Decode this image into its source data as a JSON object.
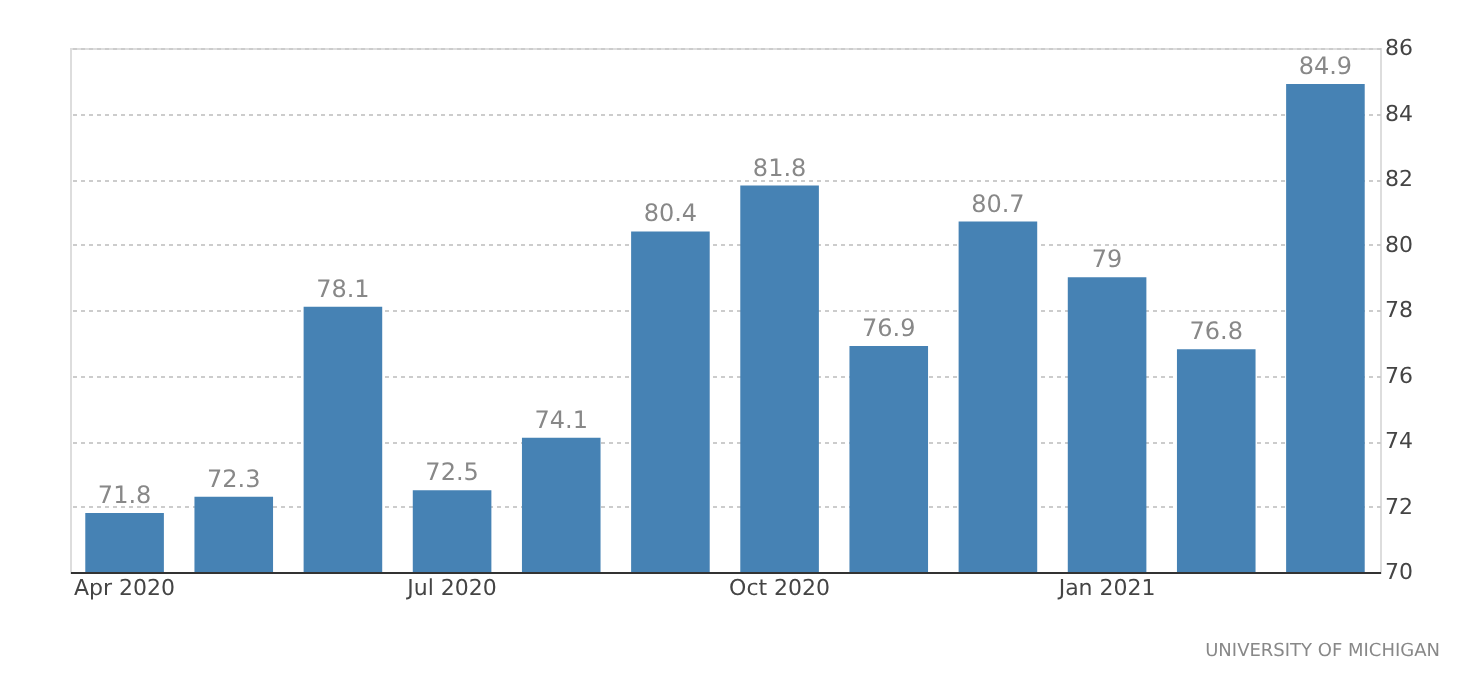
{
  "chart_data": {
    "type": "bar",
    "categories": [
      "Apr 2020",
      null,
      null,
      "Jul 2020",
      null,
      null,
      "Oct 2020",
      null,
      null,
      "Jan 2021",
      null,
      null
    ],
    "values": [
      71.8,
      72.3,
      78.1,
      72.5,
      74.1,
      80.4,
      81.8,
      76.9,
      80.7,
      79,
      76.8,
      84.9
    ],
    "color": "#4682b4",
    "ylim": [
      70,
      86
    ],
    "yticks": [
      70,
      72,
      74,
      76,
      78,
      80,
      82,
      84,
      86
    ],
    "grid": "y",
    "data_labels": true,
    "annotations": [
      "UNIVERSITY OF MICHIGAN"
    ]
  }
}
